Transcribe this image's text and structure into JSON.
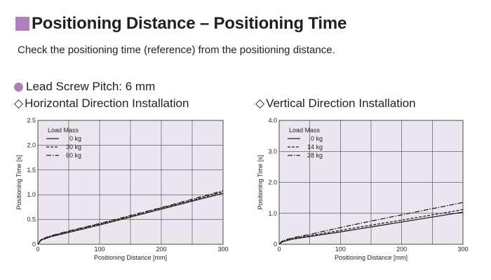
{
  "header": {
    "title": "Positioning Distance – Positioning Time",
    "subtitle": "Check the positioning time (reference) from the positioning distance.",
    "accent": "#b07fc0"
  },
  "section": {
    "label": "Lead Screw Pitch: 6 mm"
  },
  "charts": {
    "diamond": "◇",
    "plot_bg": "#ede6f0"
  },
  "chart_data": [
    {
      "type": "line",
      "title": "Horizontal Direction Installation",
      "xlabel": "Positioning Distance [mm]",
      "ylabel": "Positioning Time [s]",
      "xlim": [
        0,
        300
      ],
      "ylim": [
        0,
        2.5
      ],
      "xticks": [
        0,
        100,
        200,
        300
      ],
      "xtick_labels": [
        "0",
        "100",
        "200",
        "300"
      ],
      "yticks": [
        0,
        0.5,
        1.0,
        1.5,
        2.0,
        2.5
      ],
      "ytick_labels": [
        "0",
        "0.5",
        "1.0",
        "1.5",
        "2.0",
        "2.5"
      ],
      "grid": true,
      "legend_title": "Load Mass",
      "legend_position": "top-left",
      "series": [
        {
          "name": "0 kg",
          "style": "solid",
          "x": [
            0,
            5,
            20,
            50,
            100,
            150,
            200,
            250,
            300
          ],
          "y": [
            0,
            0.08,
            0.15,
            0.24,
            0.39,
            0.55,
            0.71,
            0.87,
            1.03
          ]
        },
        {
          "name": "30 kg",
          "style": "dashed",
          "x": [
            0,
            5,
            20,
            50,
            100,
            150,
            200,
            250,
            300
          ],
          "y": [
            0,
            0.09,
            0.16,
            0.26,
            0.41,
            0.57,
            0.73,
            0.89,
            1.06
          ]
        },
        {
          "name": "60 kg",
          "style": "dashdot",
          "x": [
            0,
            5,
            20,
            50,
            100,
            150,
            200,
            250,
            300
          ],
          "y": [
            0,
            0.1,
            0.17,
            0.27,
            0.42,
            0.58,
            0.74,
            0.91,
            1.08
          ]
        }
      ]
    },
    {
      "type": "line",
      "title": "Vertical Direction Installation",
      "xlabel": "Positioning Distance [mm]",
      "ylabel": "Positioning Time [s]",
      "xlim": [
        0,
        300
      ],
      "ylim": [
        0,
        4.0
      ],
      "xticks": [
        0,
        100,
        200,
        300
      ],
      "xtick_labels": [
        "0",
        "100",
        "200",
        "300"
      ],
      "yticks": [
        0,
        1.0,
        2.0,
        3.0,
        4.0
      ],
      "ytick_labels": [
        "0",
        "1.0",
        "2.0",
        "3.0",
        "4.0"
      ],
      "grid": true,
      "legend_title": "Load Mass",
      "legend_position": "top-left",
      "series": [
        {
          "name": "0 kg",
          "style": "solid",
          "x": [
            0,
            5,
            20,
            50,
            100,
            150,
            200,
            250,
            300
          ],
          "y": [
            0,
            0.08,
            0.16,
            0.25,
            0.4,
            0.56,
            0.72,
            0.88,
            1.04
          ]
        },
        {
          "name": "14 kg",
          "style": "dashed",
          "x": [
            0,
            5,
            20,
            50,
            100,
            150,
            200,
            250,
            300
          ],
          "y": [
            0,
            0.09,
            0.18,
            0.28,
            0.45,
            0.62,
            0.78,
            0.95,
            1.12
          ]
        },
        {
          "name": "28 kg",
          "style": "dashdot",
          "x": [
            0,
            5,
            20,
            50,
            100,
            150,
            200,
            250,
            300
          ],
          "y": [
            0,
            0.11,
            0.2,
            0.32,
            0.54,
            0.75,
            0.95,
            1.15,
            1.35
          ]
        }
      ]
    }
  ]
}
